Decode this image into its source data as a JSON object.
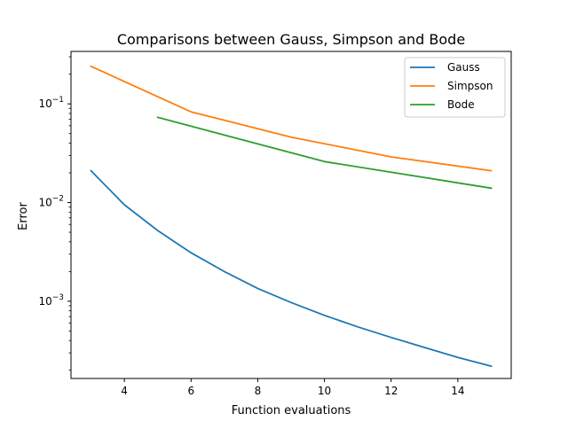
{
  "chart_data": {
    "type": "line",
    "title": "Comparisons between Gauss, Simpson and Bode",
    "xlabel": "Function evaluations",
    "ylabel": "Error",
    "xlim": [
      2.4,
      15.6
    ],
    "ylim": [
      0.000165,
      0.34
    ],
    "yscale": "log",
    "xticks": [
      4,
      6,
      8,
      10,
      12,
      14
    ],
    "yticks": [
      {
        "value": 0.1,
        "base": "10",
        "exp": "−1"
      },
      {
        "value": 0.01,
        "base": "10",
        "exp": "−2"
      },
      {
        "value": 0.001,
        "base": "10",
        "exp": "−3"
      }
    ],
    "grid": false,
    "legend": {
      "position": "top-right"
    },
    "series": [
      {
        "name": "Gauss",
        "color": "#1f77b4",
        "x": [
          3,
          4,
          5,
          6,
          7,
          8,
          9,
          10,
          11,
          12,
          13,
          14,
          15
        ],
        "y": [
          0.021,
          0.0095,
          0.0052,
          0.0031,
          0.002,
          0.00135,
          0.00097,
          0.00072,
          0.00055,
          0.00043,
          0.00034,
          0.00027,
          0.00022
        ]
      },
      {
        "name": "Simpson",
        "color": "#ff7f0e",
        "x": [
          3,
          6,
          9,
          12,
          15
        ],
        "y": [
          0.24,
          0.083,
          0.046,
          0.029,
          0.021
        ]
      },
      {
        "name": "Bode",
        "color": "#2ca02c",
        "x": [
          5,
          10,
          15
        ],
        "y": [
          0.073,
          0.026,
          0.014
        ]
      }
    ]
  }
}
